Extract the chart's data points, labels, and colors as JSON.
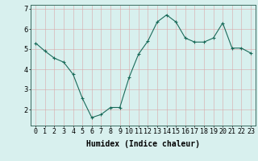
{
  "x": [
    0,
    1,
    2,
    3,
    4,
    5,
    6,
    7,
    8,
    9,
    10,
    11,
    12,
    13,
    14,
    15,
    16,
    17,
    18,
    19,
    20,
    21,
    22,
    23
  ],
  "y": [
    5.3,
    4.9,
    4.55,
    4.35,
    3.75,
    2.55,
    1.6,
    1.75,
    2.1,
    2.1,
    3.6,
    4.75,
    5.4,
    6.35,
    6.7,
    6.35,
    5.55,
    5.35,
    5.35,
    5.55,
    6.3,
    5.05,
    5.05,
    4.8
  ],
  "line_color": "#1a6b5a",
  "marker": "+",
  "marker_size": 3,
  "marker_color": "#1a6b5a",
  "bg_color": "#d8f0ee",
  "grid_color": "#c8e0dc",
  "axis_color": "#3a6a60",
  "xlabel": "Humidex (Indice chaleur)",
  "xlabel_fontsize": 7,
  "tick_fontsize": 6,
  "ylim": [
    1.2,
    7.2
  ],
  "xlim": [
    -0.5,
    23.5
  ],
  "yticks": [
    2,
    3,
    4,
    5,
    6,
    7
  ],
  "xtick_labels": [
    "0",
    "1",
    "2",
    "3",
    "4",
    "5",
    "6",
    "7",
    "8",
    "9",
    "10",
    "11",
    "12",
    "13",
    "14",
    "15",
    "16",
    "17",
    "18",
    "19",
    "20",
    "21",
    "22",
    "23"
  ]
}
